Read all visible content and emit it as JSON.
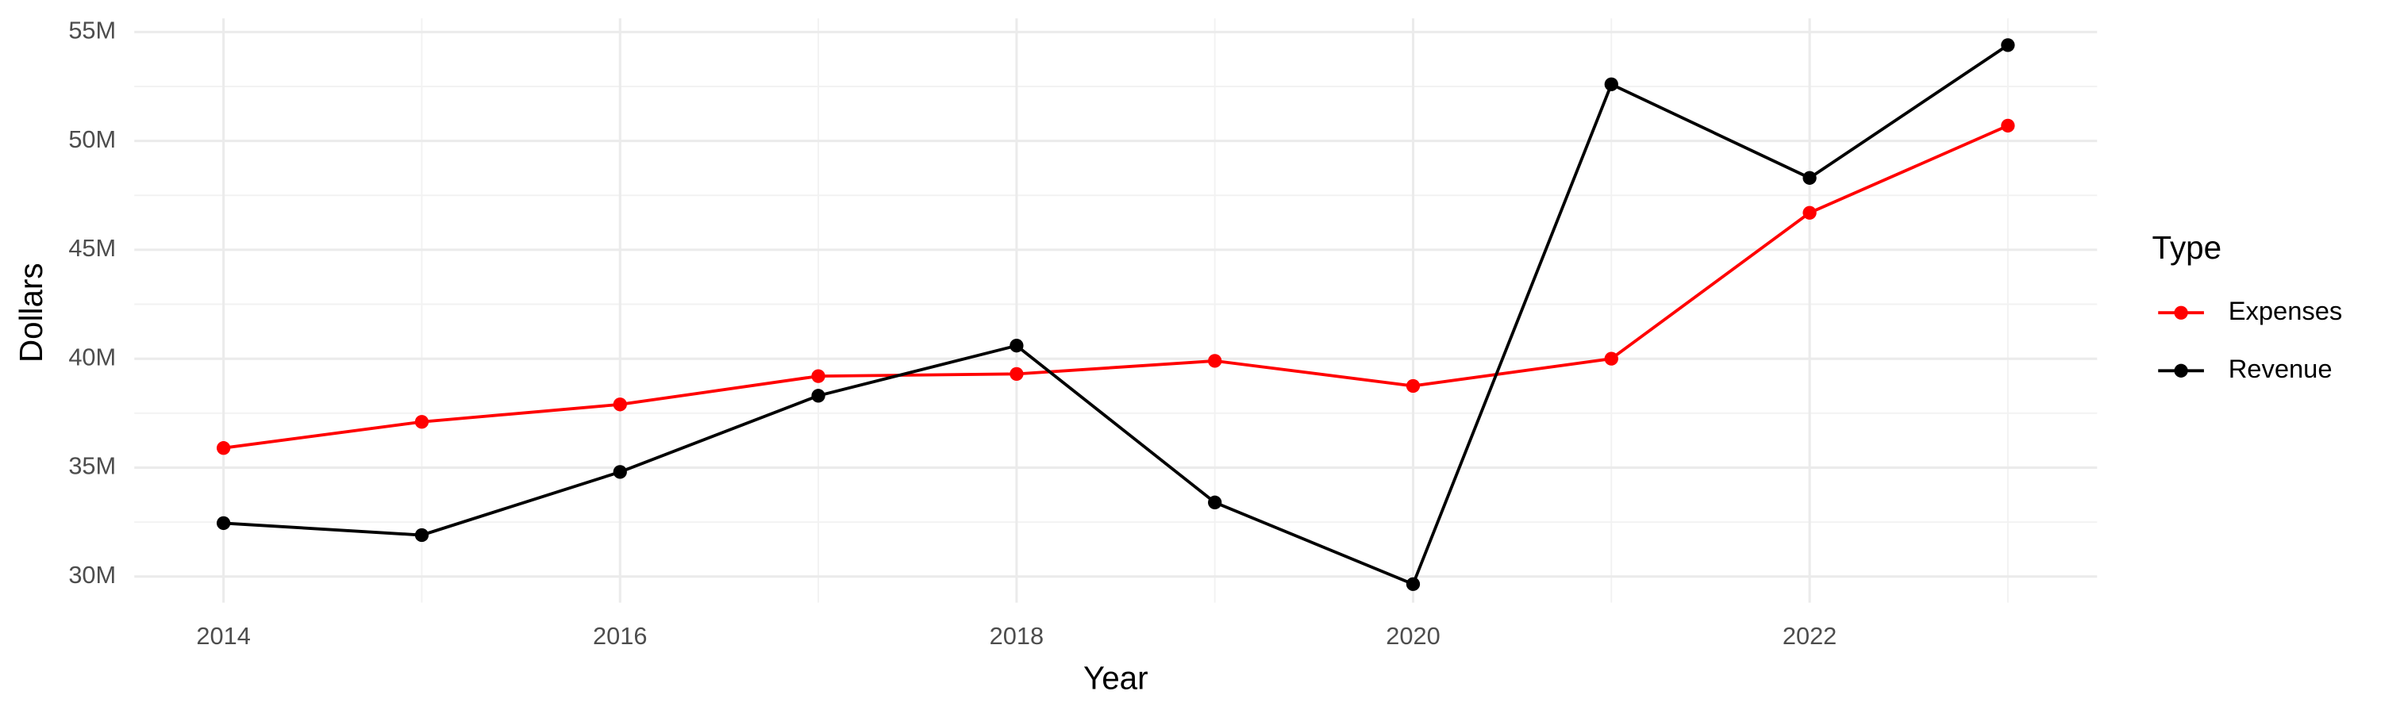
{
  "chart_data": {
    "type": "line",
    "x_label": "Year",
    "y_label": "Dollars",
    "legend_title": "Type",
    "legend": "right",
    "grid": true,
    "x": [
      2014,
      2015,
      2016,
      2017,
      2018,
      2019,
      2020,
      2021,
      2022,
      2023
    ],
    "series": [
      {
        "name": "Expenses",
        "color": "#ff0000",
        "values": [
          35900000,
          37100000,
          37900000,
          39200000,
          39300000,
          39900000,
          38750000,
          40000000,
          46700000,
          50700000
        ]
      },
      {
        "name": "Revenue",
        "color": "#000000",
        "values": [
          32450000,
          31900000,
          34800000,
          38300000,
          40600000,
          33400000,
          29650000,
          52600000,
          48300000,
          54400000
        ]
      }
    ],
    "xlim": [
      2013.55,
      2023.45
    ],
    "xticks": [
      2014,
      2016,
      2018,
      2020,
      2022
    ],
    "ylim": [
      28800000,
      55630000
    ],
    "yticks": [
      {
        "value": 30000000,
        "label": "30M"
      },
      {
        "value": 35000000,
        "label": "35M"
      },
      {
        "value": 40000000,
        "label": "40M"
      },
      {
        "value": 45000000,
        "label": "45M"
      },
      {
        "value": 50000000,
        "label": "50M"
      },
      {
        "value": 55000000,
        "label": "55M"
      }
    ]
  }
}
